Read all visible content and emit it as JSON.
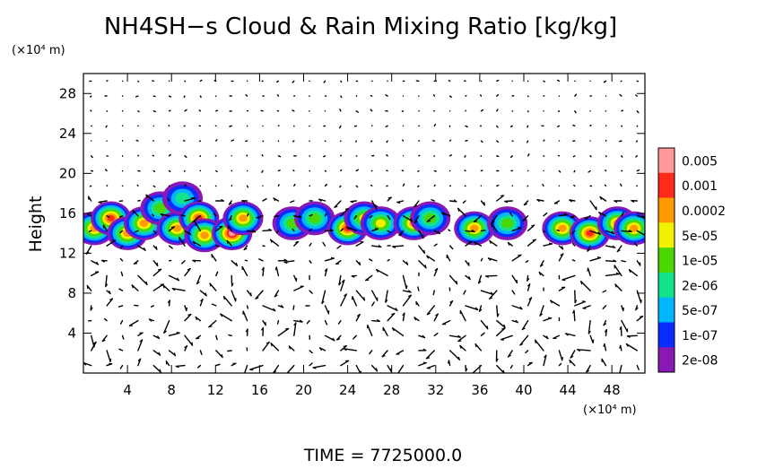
{
  "chart_data": {
    "type": "heatmap",
    "title": "NH4SH−s Cloud & Rain Mixing Ratio [kg/kg]",
    "ylabel": "Height",
    "x_unit": "(×10⁴ m)",
    "y_unit": "(×10⁴ m)",
    "footer": "TIME  =  7725000.0",
    "xlim": [
      0,
      51
    ],
    "ylim": [
      0,
      30
    ],
    "x_ticks": [
      "4",
      "8",
      "12",
      "16",
      "20",
      "24",
      "28",
      "32",
      "36",
      "40",
      "44",
      "48"
    ],
    "y_ticks": [
      "4",
      "8",
      "12",
      "16",
      "20",
      "24",
      "28"
    ],
    "colorbar_labels": [
      "0.005",
      "0.001",
      "0.0002",
      "5e-05",
      "1e-05",
      "2e-06",
      "5e-07",
      "1e-07",
      "2e-08"
    ],
    "colorbar_colors": [
      "#ff9a9a",
      "#ff2a1a",
      "#ff9a00",
      "#f2f200",
      "#4ad800",
      "#12e28a",
      "#00b6ff",
      "#0a2dff",
      "#8a18b4"
    ],
    "cloud_blobs": [
      {
        "x": 1.0,
        "y": 14.5,
        "level": 6
      },
      {
        "x": 2.5,
        "y": 15.5,
        "level": 7
      },
      {
        "x": 4.0,
        "y": 14.0,
        "level": 6
      },
      {
        "x": 5.5,
        "y": 15.0,
        "level": 6
      },
      {
        "x": 7.0,
        "y": 16.5,
        "level": 4
      },
      {
        "x": 8.5,
        "y": 14.5,
        "level": 6
      },
      {
        "x": 9.0,
        "y": 17.5,
        "level": 3
      },
      {
        "x": 10.5,
        "y": 15.5,
        "level": 7
      },
      {
        "x": 11.0,
        "y": 13.8,
        "level": 6
      },
      {
        "x": 13.5,
        "y": 14.0,
        "level": 8
      },
      {
        "x": 14.5,
        "y": 15.5,
        "level": 6
      },
      {
        "x": 19.0,
        "y": 15.0,
        "level": 4
      },
      {
        "x": 21.0,
        "y": 15.5,
        "level": 4
      },
      {
        "x": 24.0,
        "y": 14.5,
        "level": 7
      },
      {
        "x": 25.5,
        "y": 15.5,
        "level": 5
      },
      {
        "x": 27.0,
        "y": 15.0,
        "level": 5
      },
      {
        "x": 30.0,
        "y": 15.0,
        "level": 6
      },
      {
        "x": 31.5,
        "y": 15.5,
        "level": 4
      },
      {
        "x": 35.5,
        "y": 14.5,
        "level": 6
      },
      {
        "x": 38.5,
        "y": 15.0,
        "level": 4
      },
      {
        "x": 43.5,
        "y": 14.5,
        "level": 6
      },
      {
        "x": 46.0,
        "y": 14.0,
        "level": 7
      },
      {
        "x": 48.5,
        "y": 15.0,
        "level": 6
      },
      {
        "x": 50.0,
        "y": 14.5,
        "level": 6
      }
    ]
  }
}
